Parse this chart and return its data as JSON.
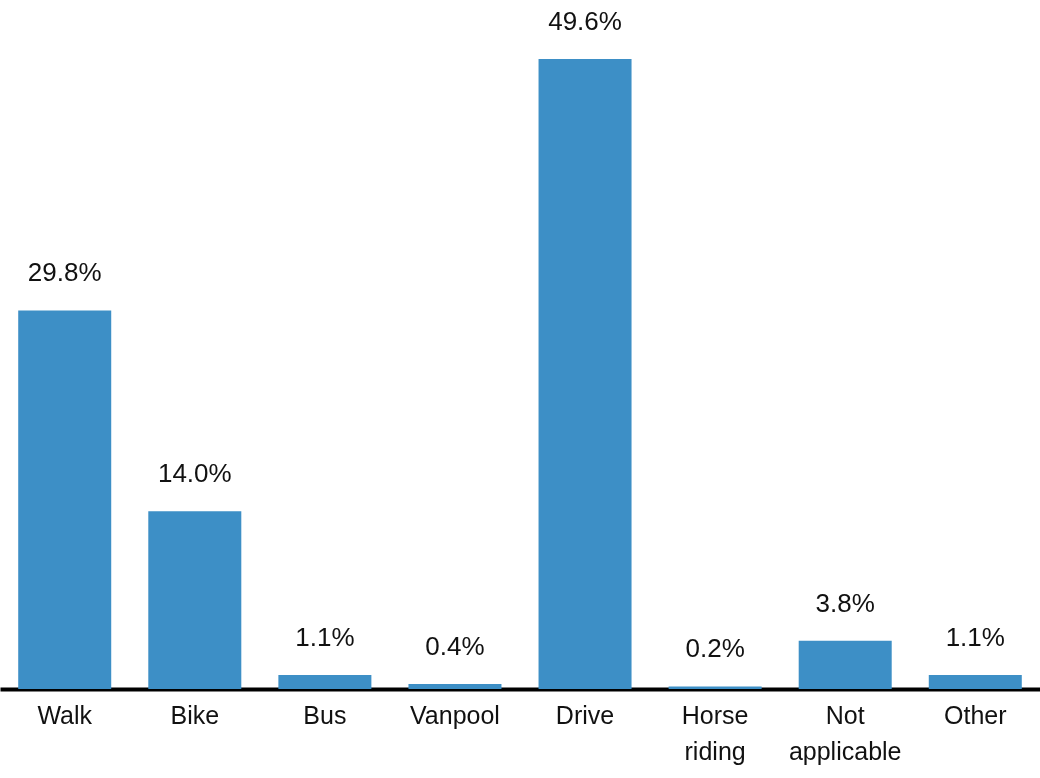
{
  "chart_data": {
    "type": "bar",
    "categories": [
      "Walk",
      "Bike",
      "Bus",
      "Vanpool",
      "Drive",
      "Horse riding",
      "Not applicable",
      "Other"
    ],
    "values": [
      29.8,
      14.0,
      1.1,
      0.4,
      49.6,
      0.2,
      3.8,
      1.1
    ],
    "value_labels": [
      "29.8%",
      "14.0%",
      "1.1%",
      "0.4%",
      "49.6%",
      "0.2%",
      "3.8%",
      "1.1%"
    ],
    "color": "#3d8fc6"
  }
}
